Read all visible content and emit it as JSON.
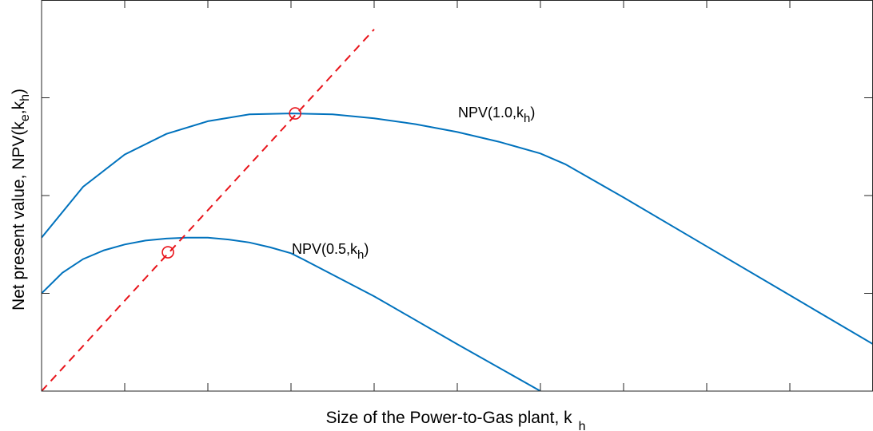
{
  "chart_data": {
    "type": "line",
    "title": "",
    "xlabel": {
      "main": "Size of the Power-to-Gas plant, k",
      "sub": "h"
    },
    "ylabel": {
      "main": "Net present value, NPV(k",
      "sub1": "e",
      "mid": ",k",
      "sub2": "h",
      "end": ")"
    },
    "xlim": [
      0,
      10
    ],
    "ylim": [
      0,
      4
    ],
    "grid": false,
    "tick_labels_shown": false,
    "series": [
      {
        "name": "NPV(1.0,k_h)",
        "color": "#0072BD",
        "x": [
          0,
          0.5,
          1,
          1.5,
          2,
          2.5,
          3,
          3.5,
          4,
          4.5,
          5,
          5.5,
          6,
          6.3,
          7,
          8,
          9,
          10
        ],
        "y": [
          1.57,
          2.09,
          2.42,
          2.63,
          2.76,
          2.83,
          2.84,
          2.83,
          2.79,
          2.73,
          2.65,
          2.55,
          2.43,
          2.32,
          1.98,
          1.48,
          0.98,
          0.48
        ]
      },
      {
        "name": "NPV(0.5,k_h)",
        "color": "#0072BD",
        "x": [
          0,
          0.25,
          0.5,
          0.75,
          1,
          1.25,
          1.5,
          1.75,
          2,
          2.25,
          2.5,
          2.75,
          3,
          3.14,
          4,
          5,
          6
        ],
        "y": [
          1.0,
          1.21,
          1.35,
          1.44,
          1.5,
          1.54,
          1.56,
          1.57,
          1.57,
          1.55,
          1.52,
          1.47,
          1.41,
          1.35,
          0.97,
          0.48,
          0.0
        ]
      }
    ],
    "optimum_line": {
      "color": "#e8141b",
      "style": "dashed",
      "x": [
        0,
        4.0
      ],
      "y": [
        0,
        3.7
      ]
    },
    "optimum_markers": [
      {
        "x": 3.05,
        "y": 2.84
      },
      {
        "x": 1.52,
        "y": 1.42
      }
    ],
    "annotations": [
      {
        "main": "NPV(1.0,k",
        "sub": "h",
        "end": ")",
        "x": 5.0,
        "y": 2.84
      },
      {
        "main": "NPV(0.5,k",
        "sub": "h",
        "end": ")",
        "x": 2.95,
        "y": 1.42
      }
    ]
  }
}
